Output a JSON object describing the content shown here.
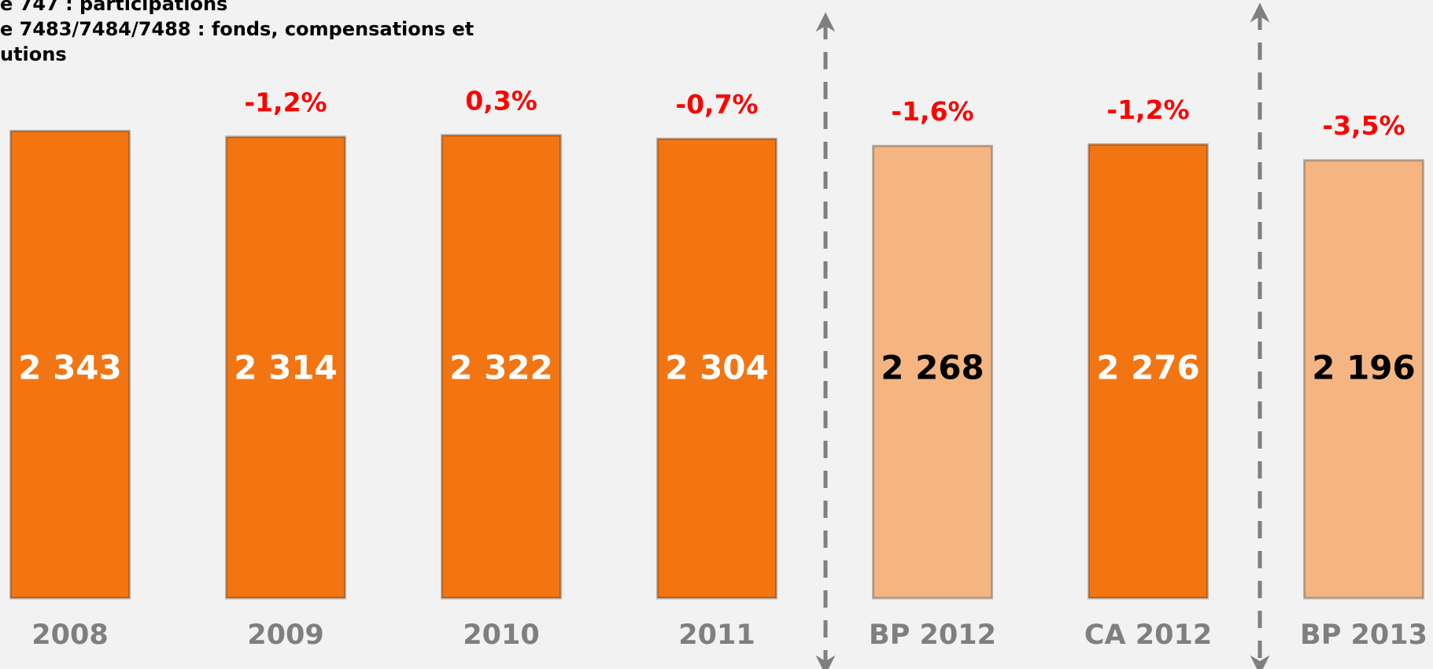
{
  "chart_data": {
    "type": "bar",
    "notes": [
      "e 747 : participations",
      "e 7483/7484/7488 : fonds, compensations et",
      "utions"
    ],
    "categories": [
      "2008",
      "2009",
      "2010",
      "2011",
      "BP 2012",
      "CA 2012",
      "BP 2013"
    ],
    "values": [
      2343,
      2314,
      2322,
      2304,
      2268,
      2276,
      2196
    ],
    "value_labels": [
      "2 343",
      "2 314",
      "2 322",
      "2 304",
      "2 268",
      "2 276",
      "2 196"
    ],
    "annotations": [
      null,
      "-1,2%",
      "0,3%",
      "-0,7%",
      "-1,6%",
      "-1,2%",
      "-3,5%"
    ],
    "colors": [
      "#f37512",
      "#f37512",
      "#f37512",
      "#f37512",
      "#f4b582",
      "#f37512",
      "#f4b582"
    ],
    "label_colors": [
      "#ffffff",
      "#ffffff",
      "#ffffff",
      "#ffffff",
      "#000000",
      "#ffffff",
      "#000000"
    ],
    "annotation_color": "#ff0000",
    "category_color": "#7f7f7f",
    "ylim": [
      0,
      2400
    ]
  }
}
